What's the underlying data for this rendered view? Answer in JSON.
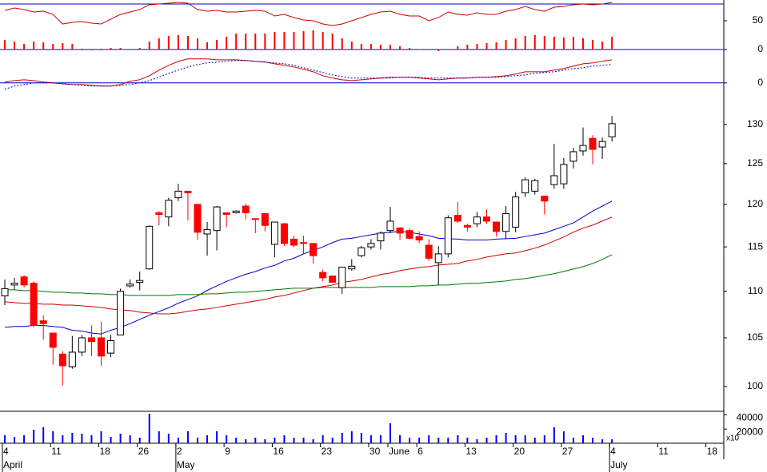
{
  "chart_data": {
    "type": "candlestick",
    "log_scale": true,
    "categories": [
      "4",
      null,
      null,
      null,
      null,
      "11",
      null,
      null,
      null,
      null,
      "18",
      null,
      null,
      null,
      "26",
      null,
      null,
      null,
      "2",
      null,
      null,
      null,
      null,
      "9",
      null,
      null,
      null,
      null,
      "16",
      null,
      null,
      null,
      null,
      "23",
      null,
      null,
      null,
      null,
      "30",
      null,
      "June",
      null,
      null,
      "6",
      null,
      null,
      null,
      null,
      "13",
      null,
      null,
      null,
      null,
      "20",
      null,
      null,
      null,
      null,
      "27",
      null,
      null,
      null,
      null,
      "4",
      null,
      null,
      null,
      null,
      "11",
      null,
      null,
      null,
      null,
      "18",
      null
    ],
    "months": [
      "April",
      null,
      null,
      null,
      null,
      null,
      null,
      null,
      null,
      null,
      null,
      null,
      null,
      null,
      null,
      null,
      null,
      null,
      "May",
      null,
      null,
      null,
      null,
      null,
      null,
      null,
      null,
      null,
      null,
      null,
      null,
      null,
      null,
      null,
      null,
      null,
      null,
      null,
      null,
      null,
      null,
      null,
      null,
      null,
      null,
      null,
      null,
      null,
      null,
      null,
      null,
      null,
      null,
      null,
      null,
      null,
      null,
      null,
      null,
      null,
      null,
      null,
      null,
      "July",
      null,
      null,
      null,
      null,
      null,
      null,
      null,
      null,
      null,
      null,
      null
    ],
    "open": [
      109.5,
      110.7,
      111.6,
      110.9,
      106.8,
      105.5,
      103.3,
      102.0,
      103.5,
      105.0,
      105.0,
      103.4,
      105.3,
      110.6,
      111.0,
      112.5,
      119.0,
      118.5,
      120.8,
      121.6,
      120.0,
      116.5,
      116.9,
      119.0,
      119.0,
      119.8,
      118.3,
      118.9,
      115.3,
      117.7,
      115.9,
      115.5,
      115.4,
      112.1,
      111.7,
      110.4,
      112.5,
      114.0,
      115.0,
      115.7,
      116.9,
      117.2,
      116.9,
      116.2,
      115.2,
      113.2,
      114.2,
      118.7,
      117.5,
      117.7,
      118.5,
      117.9,
      116.8,
      117.3,
      121.4,
      121.6,
      121.0,
      122.4,
      122.5,
      125.3,
      126.6,
      128.2,
      127.1,
      128.4,
      null,
      null,
      null,
      null,
      null,
      null,
      null,
      null,
      null,
      null,
      null
    ],
    "high": [
      111.3,
      111.5,
      111.8,
      111.1,
      107.4,
      105.5,
      103.6,
      105.2,
      105.3,
      106.3,
      106.7,
      105.3,
      110.3,
      111.3,
      112.2,
      117.5,
      119.2,
      120.8,
      122.5,
      121.6,
      120.0,
      117.9,
      119.8,
      119.0,
      119.3,
      120.1,
      118.3,
      119.0,
      117.9,
      117.8,
      116.3,
      116.3,
      115.4,
      112.4,
      111.7,
      112.7,
      113.6,
      115.1,
      115.9,
      116.8,
      119.7,
      117.3,
      117.2,
      116.8,
      115.9,
      115.1,
      118.7,
      120.3,
      117.7,
      119.1,
      119.4,
      117.9,
      119.8,
      121.5,
      123.3,
      123.1,
      121.0,
      127.5,
      125.7,
      127.0,
      129.6,
      128.6,
      128.3,
      131.1,
      null,
      null,
      null,
      null,
      null,
      null,
      null,
      null,
      null,
      null,
      null
    ],
    "low": [
      108.5,
      110.2,
      110.4,
      106.1,
      104.8,
      102.2,
      100.1,
      101.8,
      103.1,
      103.1,
      102.1,
      103.0,
      105.3,
      110.4,
      110.1,
      112.4,
      117.5,
      117.4,
      120.4,
      118.1,
      115.8,
      114.0,
      114.6,
      117.3,
      118.9,
      118.2,
      116.6,
      116.8,
      113.8,
      115.1,
      115.0,
      114.2,
      113.1,
      111.1,
      111.0,
      109.7,
      112.3,
      113.8,
      114.7,
      114.7,
      116.6,
      115.8,
      115.9,
      115.4,
      113.4,
      110.7,
      113.8,
      117.8,
      116.8,
      117.3,
      117.7,
      116.2,
      115.9,
      116.7,
      120.9,
      121.2,
      118.8,
      121.9,
      121.9,
      124.4,
      126.0,
      124.9,
      125.6,
      127.8,
      null,
      null,
      null,
      null,
      null,
      null,
      null,
      null,
      null,
      null,
      null
    ],
    "close": [
      110.3,
      110.9,
      110.7,
      106.3,
      106.5,
      104.0,
      102.1,
      103.5,
      105.0,
      104.6,
      103.1,
      104.7,
      110.0,
      110.8,
      111.2,
      117.4,
      118.8,
      120.5,
      121.6,
      121.4,
      116.7,
      117.0,
      119.7,
      118.8,
      119.2,
      119.0,
      118.2,
      117.5,
      117.9,
      115.4,
      115.2,
      115.4,
      114.0,
      111.5,
      111.0,
      112.7,
      112.8,
      114.9,
      115.4,
      116.6,
      118.0,
      116.6,
      116.0,
      115.8,
      113.7,
      114.2,
      118.4,
      118.0,
      117.3,
      118.5,
      118.0,
      116.8,
      118.9,
      120.9,
      123.0,
      122.9,
      120.4,
      123.5,
      124.9,
      126.5,
      127.3,
      126.8,
      127.8,
      130.1,
      null,
      null,
      null,
      null,
      null,
      null,
      null,
      null,
      null,
      null,
      null
    ],
    "up_color": "#ffffff",
    "down_color": "#ff0000",
    "outline_color": "#000000",
    "series": [
      {
        "color": "#0000cc",
        "values": [
          106.1,
          106.2,
          106.2,
          106.3,
          106.3,
          106.2,
          106.1,
          105.8,
          105.7,
          105.5,
          105.4,
          105.8,
          106.1,
          106.5,
          106.95,
          107.4,
          107.8,
          108.2,
          108.7,
          109.1,
          109.5,
          110.1,
          110.6,
          111.1,
          111.5,
          111.9,
          112.2,
          112.6,
          112.9,
          113.4,
          113.7,
          114.2,
          114.6,
          115.0,
          115.5,
          115.9,
          116.0,
          116.2,
          116.4,
          116.6,
          116.7,
          116.8,
          116.7,
          116.5,
          116.3,
          116.0,
          115.95,
          115.9,
          115.8,
          115.8,
          115.8,
          115.9,
          115.95,
          116.0,
          116.2,
          116.4,
          116.6,
          117.0,
          117.4,
          117.8,
          118.5,
          119.2,
          119.8,
          120.4,
          null,
          null,
          null,
          null,
          null,
          null,
          null,
          null,
          null,
          null,
          null
        ]
      },
      {
        "color": "#cc0000",
        "values": [
          108.85,
          108.77,
          108.68,
          108.68,
          108.59,
          108.59,
          108.5,
          108.5,
          108.42,
          108.33,
          108.24,
          108.07,
          107.98,
          107.9,
          107.73,
          107.64,
          107.55,
          107.55,
          107.64,
          107.81,
          107.98,
          108.07,
          108.24,
          108.42,
          108.59,
          108.77,
          108.94,
          109.11,
          109.38,
          109.55,
          109.81,
          110.08,
          110.34,
          110.52,
          110.7,
          110.97,
          111.14,
          111.32,
          111.59,
          111.86,
          112.03,
          112.3,
          112.48,
          112.66,
          112.75,
          112.93,
          113.02,
          113.11,
          113.39,
          113.57,
          113.84,
          114.02,
          114.21,
          114.3,
          114.57,
          114.85,
          115.22,
          115.68,
          116.15,
          116.71,
          117.18,
          117.54,
          118.02,
          118.48,
          null,
          null,
          null,
          null,
          null,
          null,
          null,
          null,
          null,
          null,
          null
        ]
      },
      {
        "color": "#007700",
        "values": [
          110.17,
          110.17,
          110.08,
          110.08,
          109.99,
          109.9,
          109.9,
          109.81,
          109.81,
          109.73,
          109.73,
          109.64,
          109.64,
          109.55,
          109.55,
          109.55,
          109.55,
          109.55,
          109.64,
          109.64,
          109.64,
          109.73,
          109.73,
          109.81,
          109.9,
          109.9,
          109.99,
          110.08,
          110.17,
          110.25,
          110.34,
          110.34,
          110.34,
          110.43,
          110.43,
          110.43,
          110.43,
          110.43,
          110.43,
          110.52,
          110.52,
          110.52,
          110.52,
          110.61,
          110.61,
          110.7,
          110.7,
          110.79,
          110.88,
          110.88,
          110.97,
          111.05,
          111.14,
          111.32,
          111.41,
          111.59,
          111.77,
          111.95,
          112.21,
          112.48,
          112.75,
          113.11,
          113.57,
          114.11,
          null,
          null,
          null,
          null,
          null,
          null,
          null,
          null,
          null,
          null,
          null
        ]
      }
    ],
    "ylim": [
      97.55,
      135.5
    ],
    "yticks": [
      100,
      105,
      110,
      115,
      120,
      125,
      130
    ],
    "rsi": {
      "ylim": [
        0,
        86.1
      ],
      "yticks": [
        0,
        50
      ],
      "line": {
        "color": "#cc0000",
        "values": [
          68.1,
          72.2,
          69.4,
          65.3,
          66.7,
          61.1,
          44.4,
          47.2,
          48.6,
          45.8,
          44.4,
          52.8,
          61.1,
          65.3,
          69.4,
          77.8,
          79.2,
          80.6,
          81.9,
          80.6,
          69.4,
          66.7,
          68.1,
          65.3,
          65.3,
          66.7,
          68.1,
          66.7,
          58.3,
          61.1,
          55.6,
          51.4,
          50,
          44.4,
          41.7,
          44.4,
          50,
          55.6,
          61.1,
          65.3,
          66.7,
          61.1,
          58.3,
          58.3,
          50,
          55.6,
          65.3,
          61.1,
          59.7,
          63.9,
          61.1,
          61.1,
          66.7,
          69.4,
          75,
          69.4,
          66.7,
          73.6,
          75,
          77.8,
          79.2,
          77.8,
          79.2,
          81.9,
          null,
          null,
          null,
          null,
          null,
          null,
          null,
          null,
          null,
          null,
          null
        ]
      },
      "histogram": {
        "color": "#ff0000",
        "values": [
          16.7,
          13.9,
          9.7,
          13.9,
          12.5,
          9.7,
          11.1,
          9.7,
          1.4,
          -1.4,
          1.4,
          2.8,
          2.8,
          0,
          2.8,
          13.9,
          19.4,
          23.6,
          25,
          23.6,
          19.4,
          12.5,
          16.7,
          22.2,
          27.8,
          27.8,
          27.8,
          27.8,
          30.6,
          30.6,
          30.6,
          31.9,
          33.3,
          30.6,
          27.8,
          19.4,
          13.9,
          9.7,
          9.7,
          8.3,
          8.3,
          5.6,
          2.8,
          0,
          0,
          -2.8,
          0,
          5.6,
          8.3,
          9.7,
          11.1,
          12.5,
          16.7,
          19.4,
          23.6,
          25,
          23.6,
          22.2,
          20.8,
          22.2,
          19.4,
          16.7,
          13.9,
          22.2,
          null,
          null,
          null,
          null,
          null,
          null,
          null,
          null,
          null,
          null,
          null
        ]
      }
    },
    "macd": {
      "ylim": [
        -1,
        4
      ],
      "yticks": [
        0
      ],
      "series": [
        {
          "color": "#cc0000",
          "values": [
            0.1,
            0.29,
            0.39,
            0.29,
            0.1,
            0,
            -0.1,
            -0.2,
            -0.2,
            -0.29,
            -0.39,
            -0.39,
            -0.2,
            0.2,
            0.39,
            0.88,
            1.57,
            2.16,
            2.65,
            2.94,
            2.94,
            2.94,
            2.84,
            2.84,
            2.84,
            2.75,
            2.65,
            2.55,
            2.35,
            2.16,
            1.96,
            1.67,
            1.37,
            0.88,
            0.59,
            0.39,
            0.29,
            0.39,
            0.49,
            0.59,
            0.69,
            0.69,
            0.69,
            0.59,
            0.49,
            0.39,
            0.49,
            0.59,
            0.59,
            0.69,
            0.69,
            0.78,
            0.88,
            1.08,
            1.37,
            1.37,
            1.37,
            1.57,
            1.76,
            2.06,
            2.35,
            2.45,
            2.65,
            2.84,
            null,
            null,
            null,
            null,
            null,
            null,
            null,
            null,
            null,
            null,
            null
          ]
        },
        {
          "color": "#0000cc",
          "dashed": true,
          "values": [
            -0.78,
            -0.39,
            -0.2,
            0,
            0,
            0,
            -0.1,
            -0.2,
            -0.29,
            -0.39,
            -0.39,
            -0.39,
            -0.29,
            -0.2,
            0,
            0.29,
            0.69,
            1.18,
            1.57,
            1.96,
            2.25,
            2.45,
            2.55,
            2.65,
            2.75,
            2.75,
            2.65,
            2.55,
            2.45,
            2.35,
            2.16,
            1.86,
            1.57,
            1.27,
            0.98,
            0.78,
            0.59,
            0.59,
            0.59,
            0.59,
            0.59,
            0.69,
            0.69,
            0.69,
            0.59,
            0.59,
            0.59,
            0.59,
            0.59,
            0.69,
            0.69,
            0.69,
            0.78,
            0.88,
            0.98,
            1.18,
            1.27,
            1.37,
            1.57,
            1.76,
            1.86,
            2.06,
            2.16,
            2.25,
            null,
            null,
            null,
            null,
            null,
            null,
            null,
            null,
            null,
            null,
            null
          ]
        }
      ]
    },
    "volume": {
      "ylim": [
        0,
        45000
      ],
      "yticks": [
        20000,
        40000
      ],
      "unit_label": "x10",
      "color": "#0000ff",
      "values": [
        11250,
        9000,
        11250,
        19125,
        22500,
        16875,
        11250,
        14625,
        13500,
        11250,
        16875,
        9000,
        13500,
        11250,
        7875,
        41625,
        16875,
        13500,
        7875,
        16875,
        7875,
        11250,
        16875,
        11250,
        7875,
        5625,
        7875,
        5625,
        7875,
        11250,
        7875,
        7875,
        5625,
        11250,
        7875,
        14625,
        16875,
        14625,
        11250,
        11250,
        28125,
        11250,
        7875,
        7875,
        11250,
        7875,
        7875,
        11250,
        7875,
        5625,
        7875,
        11250,
        14625,
        11250,
        11250,
        7875,
        11250,
        22500,
        16875,
        7875,
        11250,
        7875,
        5625,
        5625,
        null,
        null,
        null,
        null,
        null,
        null,
        null,
        null,
        null,
        null,
        null
      ]
    }
  }
}
